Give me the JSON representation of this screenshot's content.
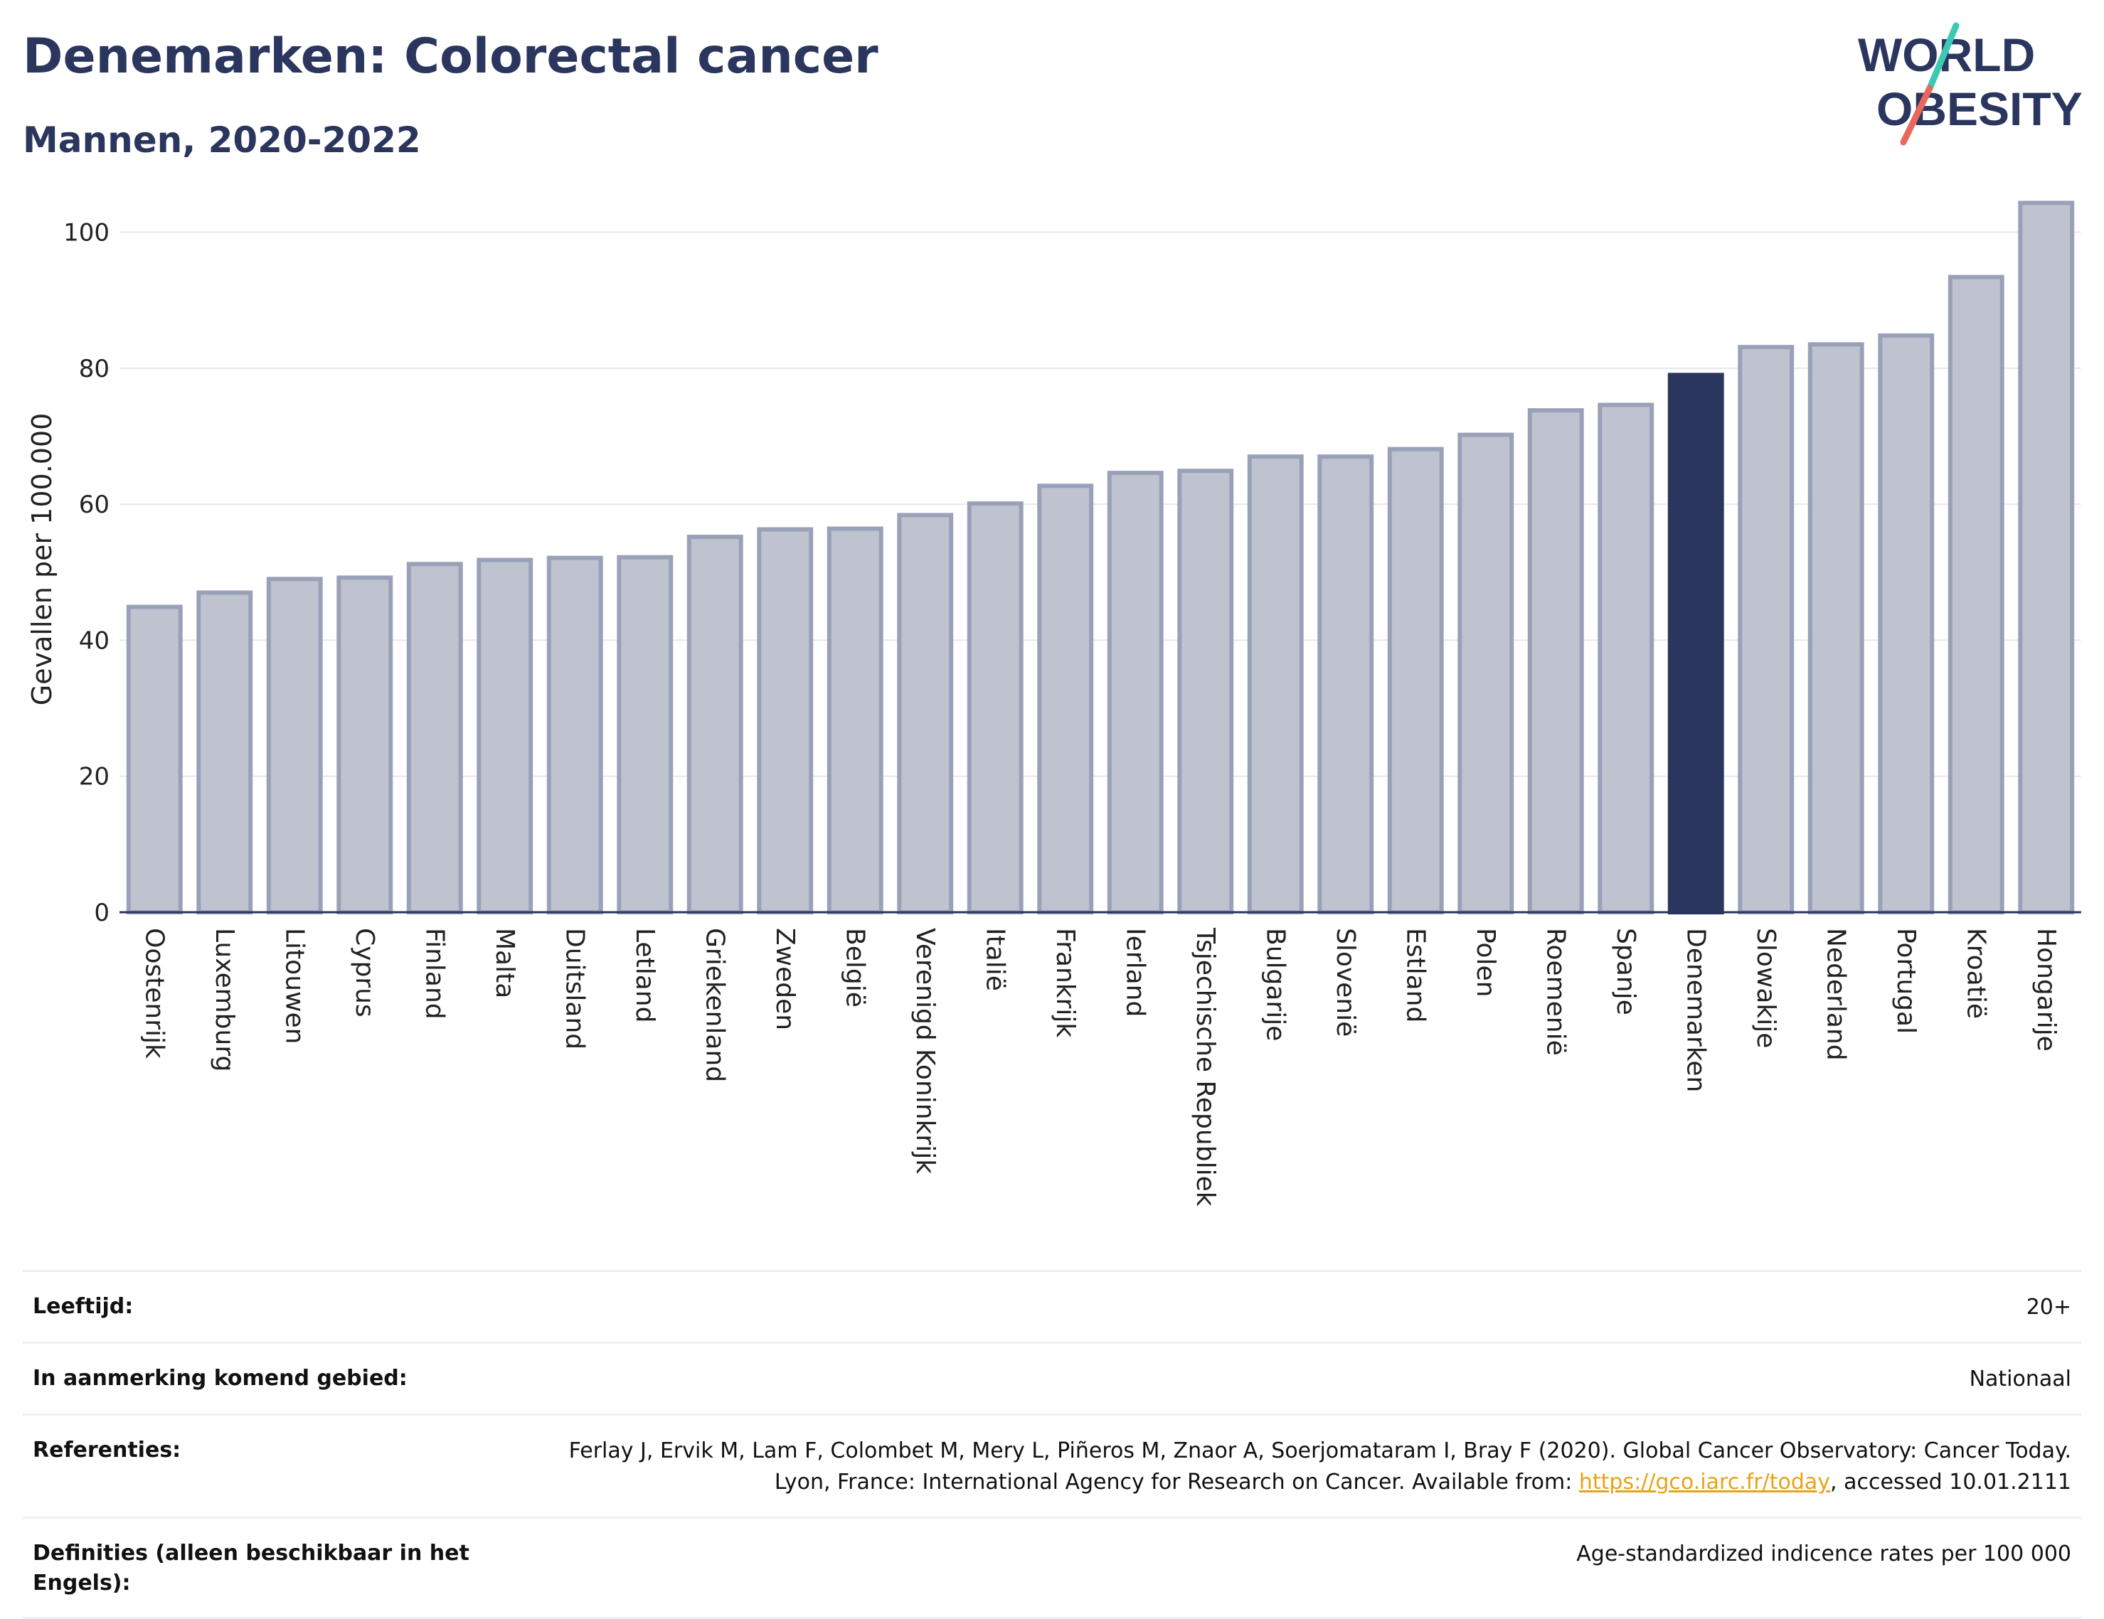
{
  "header": {
    "title": "Denemarken: Colorectal cancer",
    "subtitle": "Mannen, 2020-2022"
  },
  "logo": {
    "line1": "WORLD",
    "line2": "OBESITY",
    "slash_colors": [
      "#3cc8b4",
      "#e8695c"
    ]
  },
  "colors": {
    "highlight": "#2b365e",
    "bar_fill": "#bfc3d0",
    "bar_stroke": "#9aa0b8",
    "grid": "#e6e8ee",
    "axis": "#2b365e"
  },
  "chart_data": {
    "type": "bar",
    "ylabel": "Gevallen per 100.000",
    "xlabel": "",
    "ylim": [
      0,
      108
    ],
    "yticks": [
      0,
      20,
      40,
      60,
      80,
      100
    ],
    "grid": true,
    "highlight": "Denemarken",
    "categories": [
      "Oostenrijk",
      "Luxemburg",
      "Litouwen",
      "Cyprus",
      "Finland",
      "Malta",
      "Duitsland",
      "Letland",
      "Griekenland",
      "Zweden",
      "België",
      "Verenigd Koninkrijk",
      "Italië",
      "Frankrijk",
      "Ierland",
      "Tsjechische Republiek",
      "Bulgarije",
      "Slovenië",
      "Estland",
      "Polen",
      "Roemenië",
      "Spanje",
      "Denemarken",
      "Slowakije",
      "Nederland",
      "Portugal",
      "Kroatië",
      "Hongarije"
    ],
    "values": [
      44.9,
      47.0,
      49.0,
      49.2,
      51.2,
      51.8,
      52.1,
      52.2,
      55.2,
      56.3,
      56.4,
      58.4,
      60.1,
      62.7,
      64.6,
      64.9,
      67.0,
      67.0,
      68.1,
      70.2,
      73.8,
      74.6,
      79.0,
      83.1,
      83.5,
      84.8,
      93.4,
      104.3
    ]
  },
  "meta": [
    {
      "label": "Leeftijd:",
      "value": "20+"
    },
    {
      "label": "In aanmerking komend gebied:",
      "value": "Nationaal"
    },
    {
      "label": "Referenties:",
      "value_pre": "Ferlay J, Ervik M, Lam F, Colombet M, Mery L, Piñeros M, Znaor A, Soerjomataram I, Bray F (2020). Global Cancer Observatory: Cancer Today. Lyon, France: International Agency for Research on Cancer. Available from: ",
      "link": "https://gco.iarc.fr/today",
      "value_post": ", accessed 10.01.2111"
    },
    {
      "label": "Definities (alleen beschikbaar in het Engels):",
      "value": "Age-standardized indicence rates per 100 000"
    }
  ]
}
